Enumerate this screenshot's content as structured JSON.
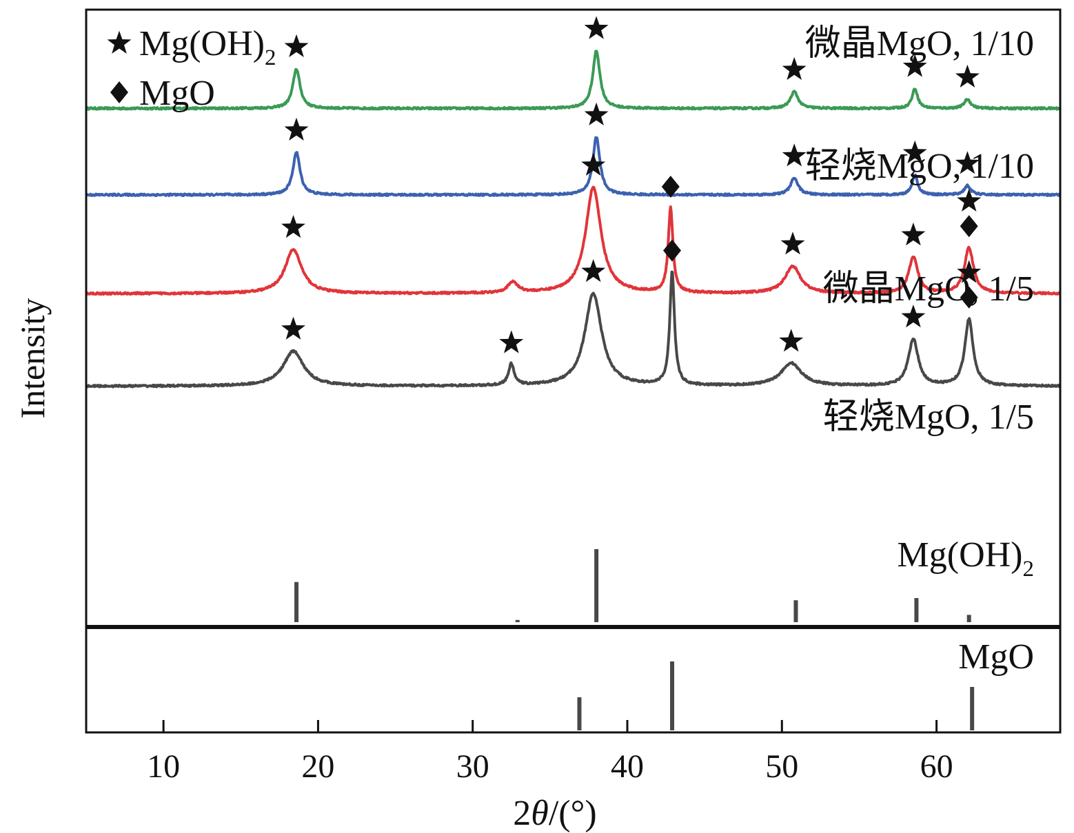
{
  "chart_data": {
    "type": "line",
    "xlabel_pre": "2",
    "xlabel_theta": "θ",
    "xlabel_post": "/(°)",
    "ylabel": "Intensity",
    "xlim": [
      5,
      68
    ],
    "x_ticks": [
      10,
      20,
      30,
      40,
      50,
      60
    ],
    "grid": false,
    "legend_position": "top-left",
    "legend": [
      {
        "marker": "star",
        "text": "Mg(OH)",
        "sub": "2"
      },
      {
        "marker": "diamond",
        "text": "MgO",
        "sub": ""
      }
    ],
    "series": [
      {
        "name": "微晶MgO, 1/10",
        "color": "#3a9a56",
        "baseline_pct": 84,
        "peaks": [
          {
            "x": 18.6,
            "h": 2.6,
            "w": 0.28,
            "marker": "star"
          },
          {
            "x": 38.0,
            "h": 3.8,
            "w": 0.28,
            "marker": "star"
          },
          {
            "x": 50.8,
            "h": 1.1,
            "w": 0.3,
            "marker": "star"
          },
          {
            "x": 58.6,
            "h": 1.3,
            "w": 0.22,
            "marker": "star"
          },
          {
            "x": 62.0,
            "h": 0.6,
            "w": 0.25,
            "marker": "star"
          }
        ]
      },
      {
        "name": "轻烧MgO, 1/10",
        "color": "#3c61ae",
        "baseline_pct": 70,
        "peaks": [
          {
            "x": 18.6,
            "h": 2.8,
            "w": 0.28,
            "marker": "star"
          },
          {
            "x": 38.0,
            "h": 3.8,
            "w": 0.28,
            "marker": "star"
          },
          {
            "x": 50.8,
            "h": 1.1,
            "w": 0.3,
            "marker": "star"
          },
          {
            "x": 58.6,
            "h": 1.3,
            "w": 0.22,
            "marker": "star"
          },
          {
            "x": 62.0,
            "h": 0.6,
            "w": 0.25,
            "marker": "star"
          }
        ]
      },
      {
        "name": "微晶MgO, 1/5",
        "color": "#e0353a",
        "baseline_pct": 54,
        "peaks": [
          {
            "x": 18.4,
            "h": 2.9,
            "w": 0.65,
            "marker": "star"
          },
          {
            "x": 32.6,
            "h": 0.7,
            "w": 0.4,
            "marker": ""
          },
          {
            "x": 37.8,
            "h": 7.0,
            "w": 0.6,
            "marker": "star"
          },
          {
            "x": 42.8,
            "h": 5.6,
            "w": 0.18,
            "marker": "diamond"
          },
          {
            "x": 50.7,
            "h": 1.8,
            "w": 0.6,
            "marker": "star"
          },
          {
            "x": 58.5,
            "h": 2.4,
            "w": 0.35,
            "marker": "star"
          },
          {
            "x": 62.1,
            "h": 3.0,
            "w": 0.35,
            "marker": "star+diamond"
          }
        ]
      },
      {
        "name": "轻烧MgO, 1/5",
        "color": "#4a4747",
        "baseline_pct": 39,
        "peaks": [
          {
            "x": 18.4,
            "h": 2.3,
            "w": 0.8,
            "marker": "star"
          },
          {
            "x": 32.5,
            "h": 1.4,
            "w": 0.22,
            "marker": "star"
          },
          {
            "x": 37.8,
            "h": 6.1,
            "w": 0.65,
            "marker": "star"
          },
          {
            "x": 42.9,
            "h": 7.5,
            "w": 0.18,
            "marker": "diamond"
          },
          {
            "x": 50.6,
            "h": 1.5,
            "w": 0.8,
            "marker": "star"
          },
          {
            "x": 58.5,
            "h": 3.1,
            "w": 0.38,
            "marker": "star"
          },
          {
            "x": 62.1,
            "h": 4.4,
            "w": 0.32,
            "marker": "star+diamond"
          }
        ]
      }
    ],
    "references": [
      {
        "name": "Mg(OH)",
        "sub": "2",
        "color": "#4a4747",
        "lines": [
          {
            "x": 18.6,
            "i": 0.55
          },
          {
            "x": 32.9,
            "i": 0.03
          },
          {
            "x": 38.0,
            "i": 1.0
          },
          {
            "x": 50.9,
            "i": 0.3
          },
          {
            "x": 58.7,
            "i": 0.33
          },
          {
            "x": 62.1,
            "i": 0.1
          }
        ]
      },
      {
        "name": "MgO",
        "sub": "",
        "color": "#4a4747",
        "lines": [
          {
            "x": 36.9,
            "i": 0.48
          },
          {
            "x": 42.9,
            "i": 1.0
          },
          {
            "x": 62.3,
            "i": 0.63
          }
        ]
      }
    ]
  }
}
